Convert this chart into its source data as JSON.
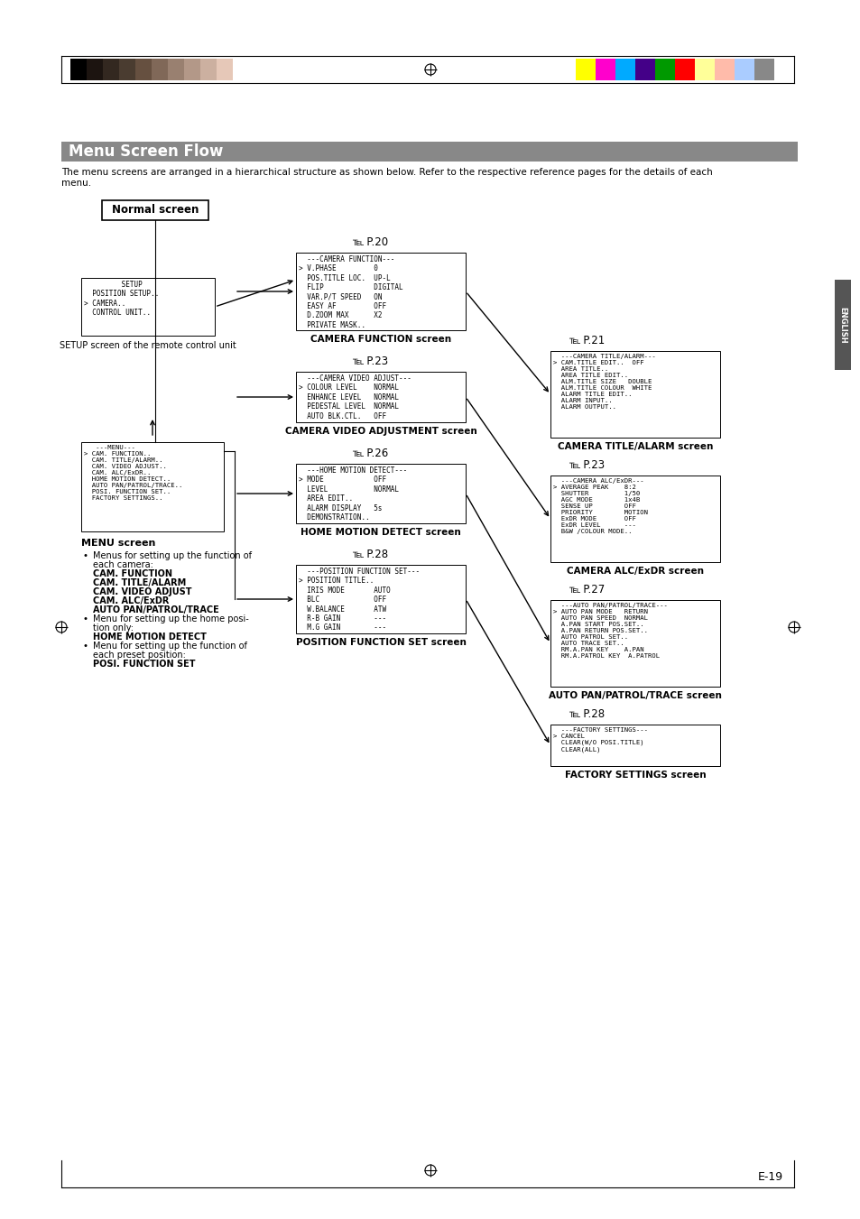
{
  "title": "Menu Screen Flow",
  "title_bg": "#888888",
  "title_color": "#ffffff",
  "page_bg": "#ffffff",
  "intro_text": "The menu screens are arranged in a hierarchical structure as shown below. Refer to the respective reference pages for the details of each\nmenu.",
  "normal_screen_label": "Normal screen",
  "setup_screen_lines": [
    "         SETUP",
    "  POSITION SETUP..",
    "> CAMERA..",
    "  CONTROL UNIT.."
  ],
  "setup_screen_caption": "SETUP screen of the remote control unit",
  "menu_screen_lines": [
    "   ---MENU---",
    "> CAM. FUNCTION..",
    "  CAM. TITLE/ALARM..",
    "  CAM. VIDEO ADJUST..",
    "  CAM. ALC/ExDR..",
    "  HOME MOTION DETECT..",
    "  AUTO PAN/PATROL/TRACE..",
    "  POSI. FUNCTION SET..",
    "  FACTORY SETTINGS.."
  ],
  "menu_screen_label": "MENU screen",
  "p20_ref": "℡ P.20",
  "p21_ref": "℡ P.21",
  "p23_ref_1": "℡ P.23",
  "p23_ref_2": "℡ P.23",
  "p26_ref": "℡ P.26",
  "p27_ref": "℡ P.27",
  "p28_ref_1": "℡ P.28",
  "p28_ref_2": "℡ P.28",
  "cam_function_lines": [
    "  ---CAMERA FUNCTION---",
    "> V.PHASE         0",
    "  POS.TITLE LOC.  UP-L",
    "  FLIP            DIGITAL",
    "  VAR.P/T SPEED   ON",
    "  EASY AF         OFF",
    "  D.ZOOM MAX      X2",
    "  PRIVATE MASK.."
  ],
  "cam_function_label": "CAMERA FUNCTION screen",
  "cam_video_lines": [
    "  ---CAMERA VIDEO ADJUST---",
    "> COLOUR LEVEL    NORMAL",
    "  ENHANCE LEVEL   NORMAL",
    "  PEDESTAL LEVEL  NORMAL",
    "  AUTO BLK.CTL.   OFF"
  ],
  "cam_video_label": "CAMERA VIDEO ADJUSTMENT screen",
  "home_motion_lines": [
    "  ---HOME MOTION DETECT---",
    "> MODE            OFF",
    "  LEVEL           NORMAL",
    "  AREA EDIT..",
    "  ALARM DISPLAY   5s",
    "  DEMONSTRATION.."
  ],
  "home_motion_label": "HOME MOTION DETECT screen",
  "pos_func_lines": [
    "  ---POSITION FUNCTION SET---",
    "> POSITION TITLE..",
    "  IRIS MODE       AUTO",
    "  BLC             OFF",
    "  W.BALANCE       ATW",
    "  R-B GAIN        ---",
    "  M.G GAIN        ---"
  ],
  "pos_func_label": "POSITION FUNCTION SET screen",
  "cam_title_lines": [
    "  ---CAMERA TITLE/ALARM---",
    "> CAM.TITLE EDIT..  OFF",
    "  AREA TITLE..",
    "  AREA TITLE EDIT..",
    "  ALM.TITLE SIZE   DOUBLE",
    "  ALM.TITLE COLOUR  WHITE",
    "  ALARM TITLE EDIT..",
    "  ALARM INPUT..",
    "  ALARM OUTPUT.."
  ],
  "cam_title_label": "CAMERA TITLE/ALARM screen",
  "cam_alc_lines": [
    "  ---CAMERA ALC/ExDR---",
    "> AVERAGE PEAK    8:2",
    "  SHUTTER         1/50",
    "  AGC MODE        1x4B",
    "  SENSE UP        OFF",
    "  PRIORITY        MOTION",
    "  ExDR MODE       OFF",
    "  ExDR LEVEL      ---",
    "  B&W /COLOUR MODE.."
  ],
  "cam_alc_label": "CAMERA ALC/ExDR screen",
  "auto_pan_lines": [
    "  ---AUTO PAN/PATROL/TRACE---",
    "> AUTO PAN MODE   RETURN",
    "  AUTO PAN SPEED  NORMAL",
    "  A.PAN START POS.SET..",
    "  A.PAN RETURN POS.SET..",
    "  AUTO PATROL SET..",
    "  AUTO TRACE SET..",
    "  RM.A.PAN KEY    A.PAN",
    "  RM.A.PATROL KEY  A.PATROL"
  ],
  "auto_pan_label": "AUTO PAN/PATROL/TRACE screen",
  "factory_lines": [
    "  ---FACTORY SETTINGS---",
    "> CANCEL",
    "  CLEAR(W/O POSI.TITLE)",
    "  CLEAR(ALL)"
  ],
  "factory_label": "FACTORY SETTINGS screen",
  "english_label": "ENGLISH",
  "page_num": "E-19",
  "color_bar_bw": [
    "#000000",
    "#1c1410",
    "#332820",
    "#4a3c30",
    "#665040",
    "#806858",
    "#998070",
    "#b39888",
    "#ccb0a0",
    "#e6c8b8",
    "#ffffff"
  ],
  "color_bar_colors": [
    "#ffff00",
    "#ff00cc",
    "#00aaff",
    "#440088",
    "#009900",
    "#ff0000",
    "#ffff99",
    "#ffbbaa",
    "#aaccff",
    "#888888"
  ]
}
